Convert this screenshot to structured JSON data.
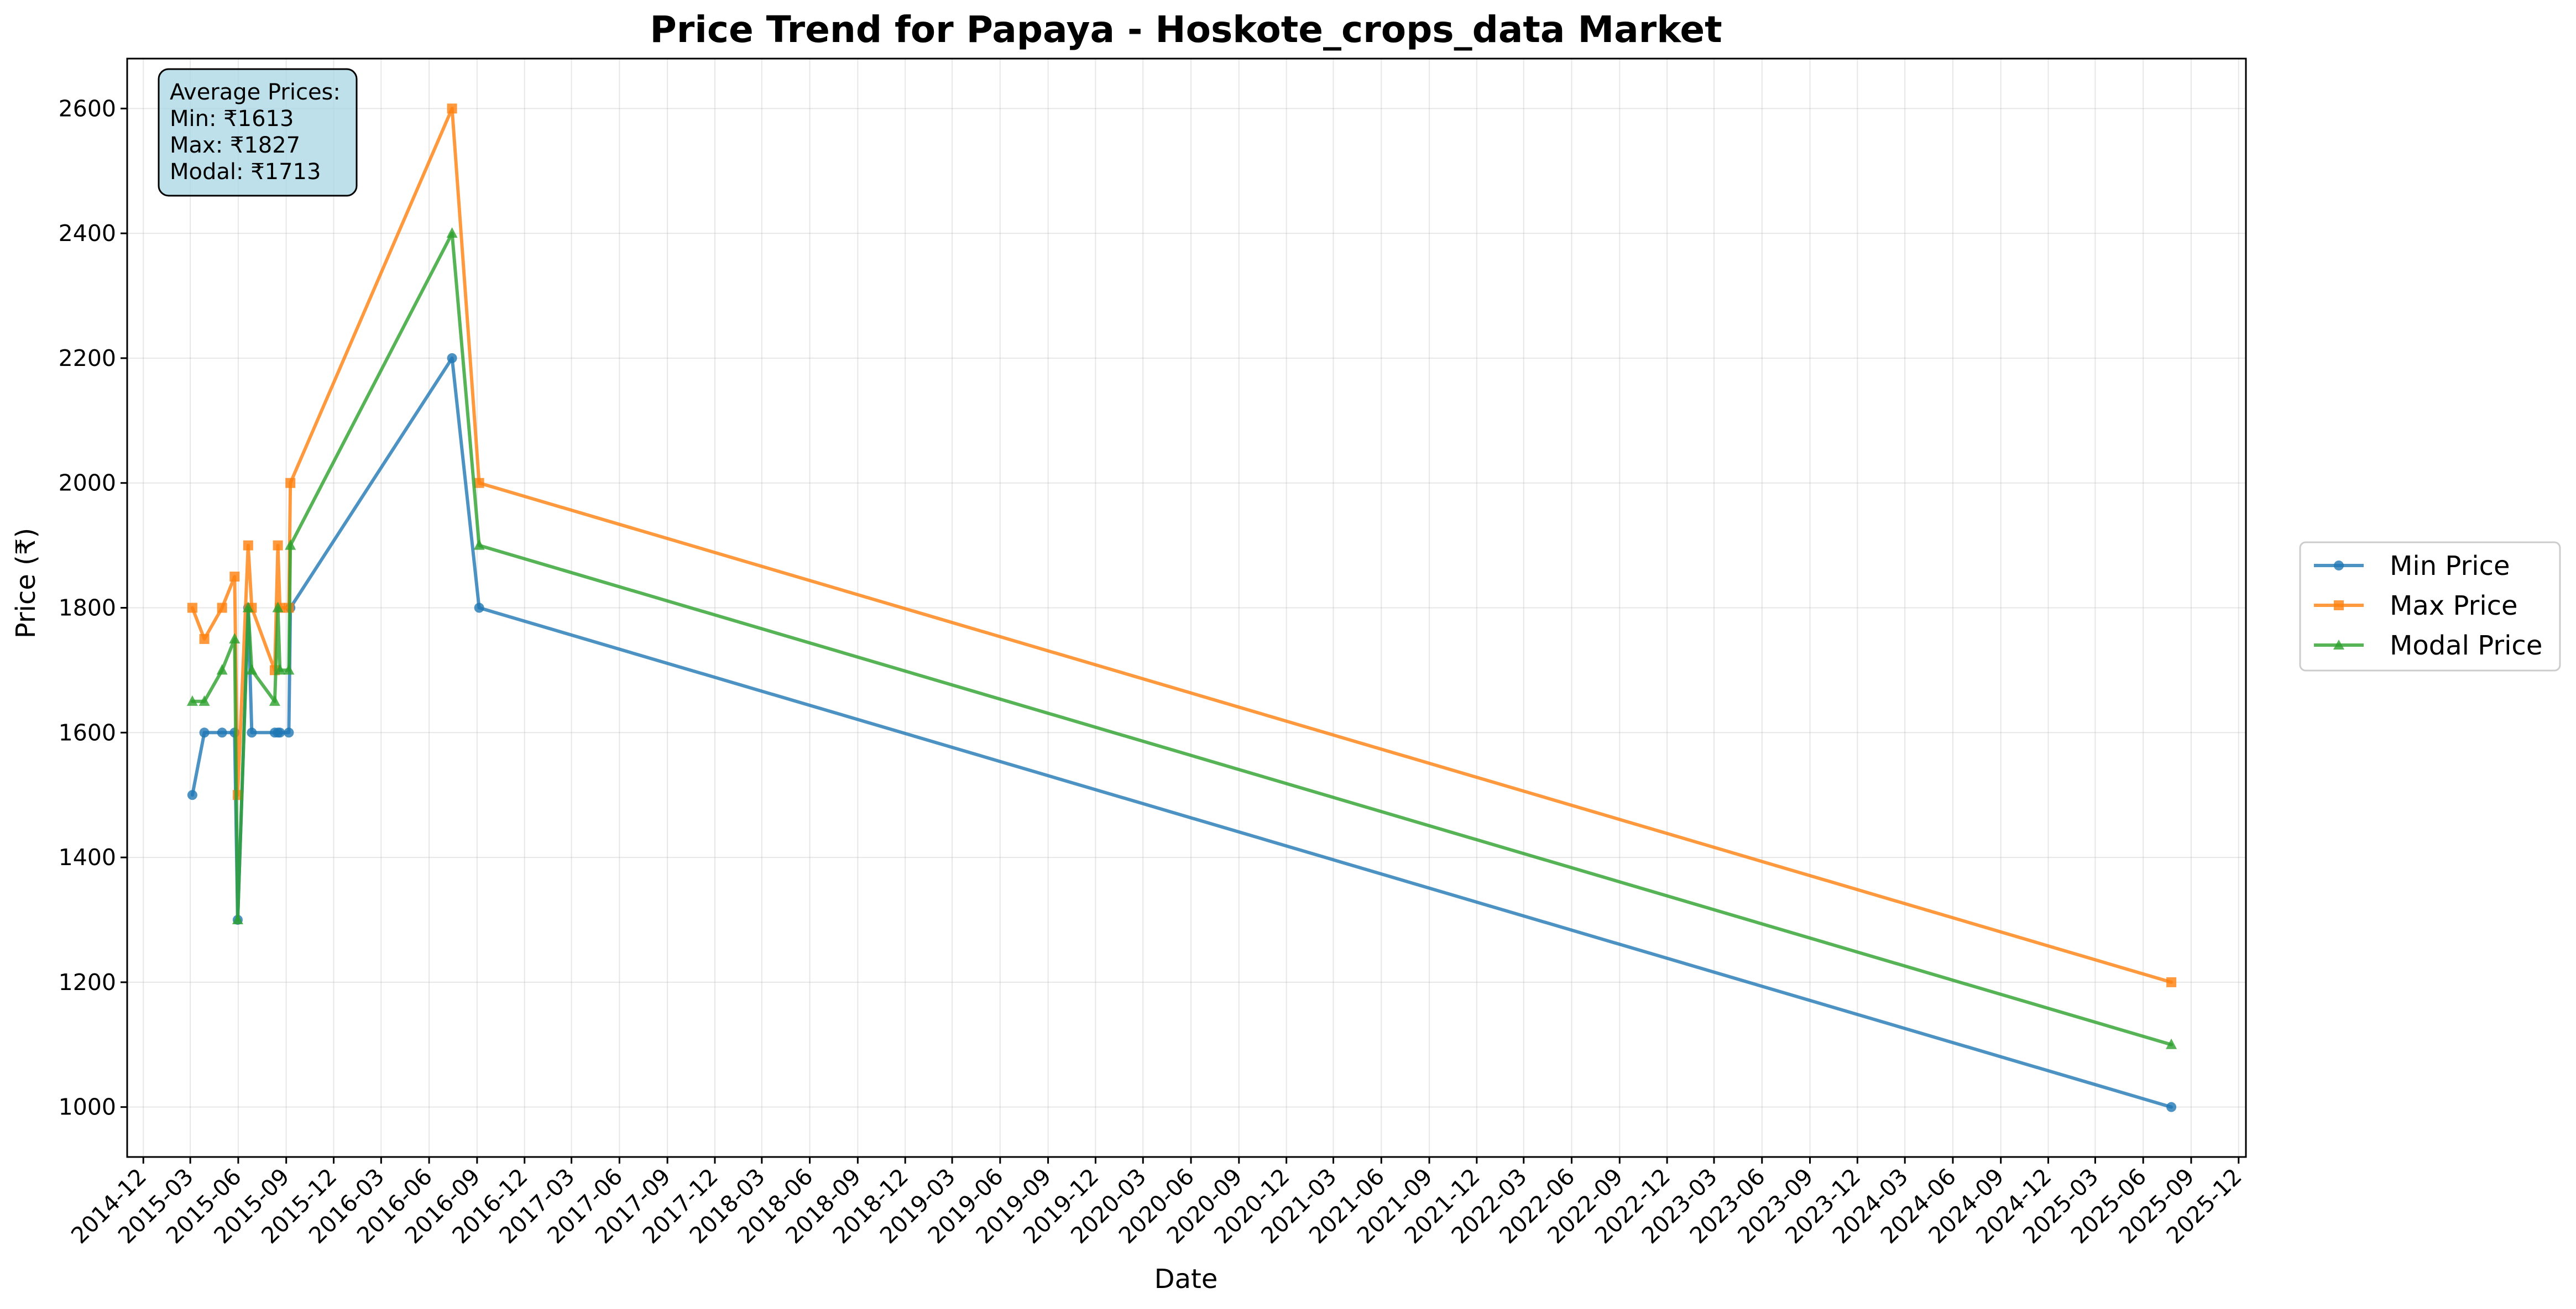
{
  "chart_data": {
    "type": "line",
    "title": "Price Trend for Papaya - Hoskote_crops_data Market",
    "xlabel": "Date",
    "ylabel": "Price (₹)",
    "xlim": [
      "2014-10-31",
      "2025-12-15"
    ],
    "ylim": [
      920,
      2680
    ],
    "y_ticks": [
      1000,
      1200,
      1400,
      1600,
      1800,
      2000,
      2200,
      2400,
      2600
    ],
    "x_ticks": [
      "2014-12",
      "2015-03",
      "2015-06",
      "2015-09",
      "2015-12",
      "2016-03",
      "2016-06",
      "2016-09",
      "2016-12",
      "2017-03",
      "2017-06",
      "2017-09",
      "2017-12",
      "2018-03",
      "2018-06",
      "2018-09",
      "2018-12",
      "2019-03",
      "2019-06",
      "2019-09",
      "2019-12",
      "2020-03",
      "2020-06",
      "2020-09",
      "2020-12",
      "2021-03",
      "2021-06",
      "2021-09",
      "2021-12",
      "2022-03",
      "2022-06",
      "2022-09",
      "2022-12",
      "2023-03",
      "2023-06",
      "2023-09",
      "2023-12",
      "2024-03",
      "2024-06",
      "2024-09",
      "2024-12",
      "2025-03",
      "2025-06",
      "2025-09",
      "2025-12"
    ],
    "grid": true,
    "legend_position": "right",
    "annotation": {
      "lines": [
        "Average Prices:",
        "Min: ₹1613",
        "Max: ₹1827",
        "Modal: ₹1713"
      ],
      "background": "#add8e6"
    },
    "series": [
      {
        "name": "Min Price",
        "color": "#1f77b4",
        "marker": "circle",
        "points": [
          {
            "x": "2015-03-05",
            "y": 1500
          },
          {
            "x": "2015-03-28",
            "y": 1600
          },
          {
            "x": "2015-05-01",
            "y": 1600
          },
          {
            "x": "2015-05-25",
            "y": 1600
          },
          {
            "x": "2015-05-31",
            "y": 1300
          },
          {
            "x": "2015-06-20",
            "y": 1800
          },
          {
            "x": "2015-06-27",
            "y": 1600
          },
          {
            "x": "2015-08-10",
            "y": 1600
          },
          {
            "x": "2015-08-16",
            "y": 1600
          },
          {
            "x": "2015-08-20",
            "y": 1600
          },
          {
            "x": "2015-09-06",
            "y": 1600
          },
          {
            "x": "2015-09-09",
            "y": 1800
          },
          {
            "x": "2016-07-15",
            "y": 2200
          },
          {
            "x": "2016-09-05",
            "y": 1800
          },
          {
            "x": "2025-07-25",
            "y": 1000
          }
        ]
      },
      {
        "name": "Max Price",
        "color": "#ff7f0e",
        "marker": "square",
        "points": [
          {
            "x": "2015-03-05",
            "y": 1800
          },
          {
            "x": "2015-03-28",
            "y": 1750
          },
          {
            "x": "2015-05-01",
            "y": 1800
          },
          {
            "x": "2015-05-25",
            "y": 1850
          },
          {
            "x": "2015-05-31",
            "y": 1500
          },
          {
            "x": "2015-06-20",
            "y": 1900
          },
          {
            "x": "2015-06-27",
            "y": 1800
          },
          {
            "x": "2015-08-10",
            "y": 1700
          },
          {
            "x": "2015-08-16",
            "y": 1900
          },
          {
            "x": "2015-08-20",
            "y": 1800
          },
          {
            "x": "2015-09-06",
            "y": 1800
          },
          {
            "x": "2015-09-09",
            "y": 2000
          },
          {
            "x": "2016-07-15",
            "y": 2600
          },
          {
            "x": "2016-09-05",
            "y": 2000
          },
          {
            "x": "2025-07-25",
            "y": 1200
          }
        ]
      },
      {
        "name": "Modal Price",
        "color": "#2ca02c",
        "marker": "triangle",
        "points": [
          {
            "x": "2015-03-05",
            "y": 1650
          },
          {
            "x": "2015-03-28",
            "y": 1650
          },
          {
            "x": "2015-05-01",
            "y": 1700
          },
          {
            "x": "2015-05-25",
            "y": 1750
          },
          {
            "x": "2015-05-31",
            "y": 1300
          },
          {
            "x": "2015-06-20",
            "y": 1800
          },
          {
            "x": "2015-06-27",
            "y": 1700
          },
          {
            "x": "2015-08-10",
            "y": 1650
          },
          {
            "x": "2015-08-16",
            "y": 1800
          },
          {
            "x": "2015-08-20",
            "y": 1700
          },
          {
            "x": "2015-09-06",
            "y": 1700
          },
          {
            "x": "2015-09-09",
            "y": 1900
          },
          {
            "x": "2016-07-15",
            "y": 2400
          },
          {
            "x": "2016-09-05",
            "y": 1900
          },
          {
            "x": "2025-07-25",
            "y": 1100
          }
        ]
      }
    ]
  }
}
